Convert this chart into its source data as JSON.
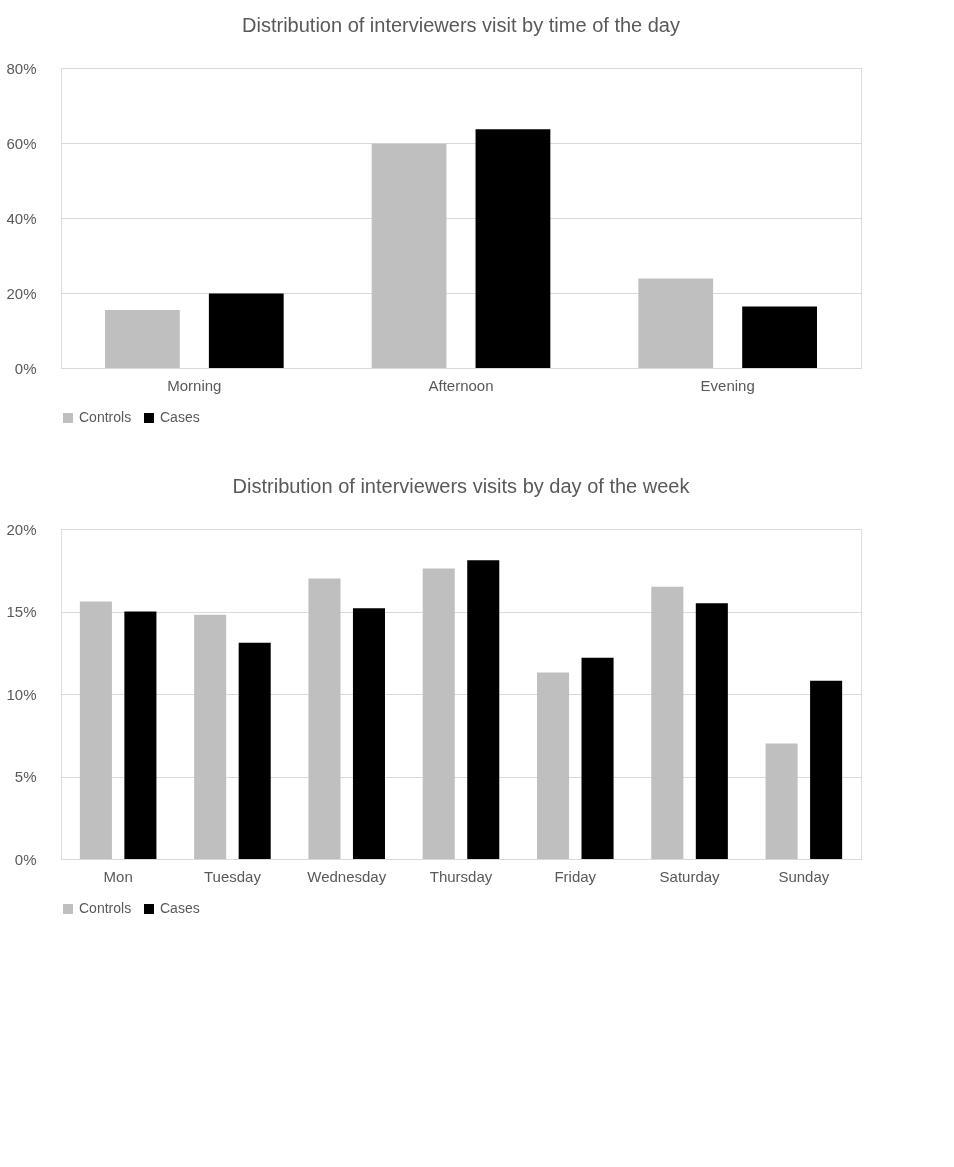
{
  "chart_data": [
    {
      "type": "bar",
      "title": "Distribution of interviewers visit by time of the day",
      "categories": [
        "Morning",
        "Afternoon",
        "Evening"
      ],
      "series": [
        {
          "name": "Controls",
          "color": "#bfbfbf",
          "values": [
            15.5,
            59.8,
            23.9
          ]
        },
        {
          "name": "Cases",
          "color": "#000000",
          "values": [
            19.9,
            63.7,
            16.4
          ]
        }
      ],
      "ylim": [
        0,
        80
      ],
      "yticks": [
        {
          "value": 0,
          "label": "0%"
        },
        {
          "value": 20,
          "label": "20%"
        },
        {
          "value": 40,
          "label": "40%"
        },
        {
          "value": 60,
          "label": "60%"
        },
        {
          "value": 80,
          "label": "80%"
        }
      ],
      "grid": "y",
      "legend": "bottom"
    },
    {
      "type": "bar",
      "title": "Distribution of interviewers visits by day of the week",
      "categories": [
        "Mon",
        "Tuesday",
        "Wednesday",
        "Thursday",
        "Friday",
        "Saturday",
        "Sunday"
      ],
      "series": [
        {
          "name": "Controls",
          "color": "#bfbfbf",
          "values": [
            15.6,
            14.8,
            17.0,
            17.6,
            11.3,
            16.5,
            7.0
          ]
        },
        {
          "name": "Cases",
          "color": "#000000",
          "values": [
            15.0,
            13.1,
            15.2,
            18.1,
            12.2,
            15.5,
            10.8
          ]
        }
      ],
      "ylim": [
        0,
        20
      ],
      "yticks": [
        {
          "value": 0,
          "label": "0%"
        },
        {
          "value": 5,
          "label": "5%"
        },
        {
          "value": 10,
          "label": "10%"
        },
        {
          "value": 15,
          "label": "15%"
        },
        {
          "value": 20,
          "label": "20%"
        }
      ],
      "grid": "y",
      "legend": "bottom"
    }
  ]
}
